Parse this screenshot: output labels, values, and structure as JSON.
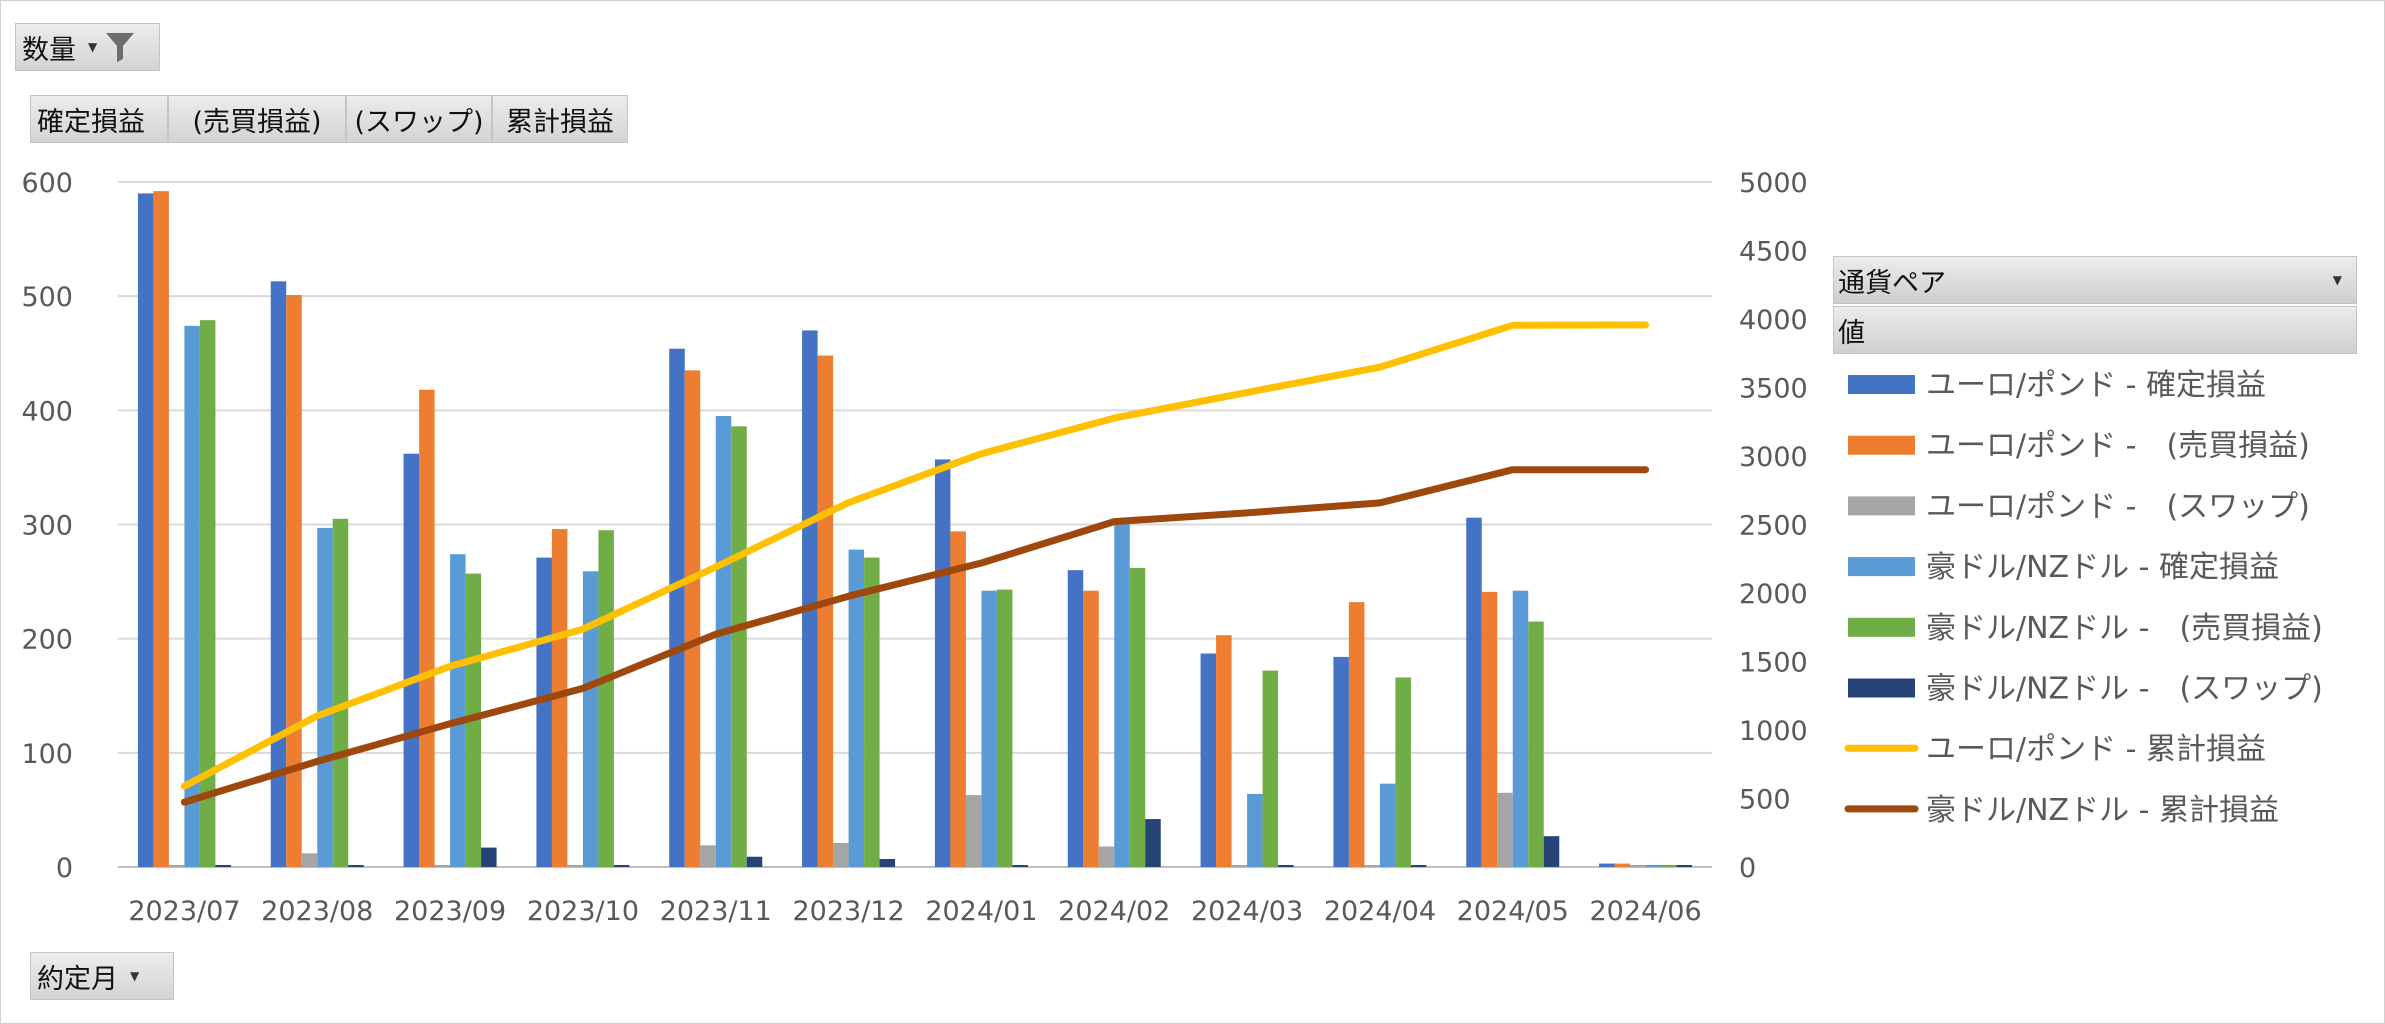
{
  "filter_field": {
    "label": "数量",
    "icon": "funnel-icon"
  },
  "value_fields": [
    "確定損益",
    "(売買損益)",
    "(スワップ)",
    "累計損益"
  ],
  "axis_field": {
    "label": "約定月"
  },
  "legend_header": {
    "series_field": "通貨ペア",
    "values_label": "値"
  },
  "chart_data": {
    "type": "bar",
    "categories": [
      "2023/07",
      "2023/08",
      "2023/09",
      "2023/10",
      "2023/11",
      "2023/12",
      "2024/01",
      "2024/02",
      "2024/03",
      "2024/04",
      "2024/05",
      "2024/06"
    ],
    "y_left": {
      "min": 0,
      "max": 600,
      "ticks": [
        0,
        100,
        200,
        300,
        400,
        500,
        600
      ]
    },
    "y_right": {
      "min": 0,
      "max": 5000,
      "ticks": [
        0,
        500,
        1000,
        1500,
        2000,
        2500,
        3000,
        3500,
        4000,
        4500,
        5000
      ]
    },
    "grid": true,
    "legend_position": "right",
    "series": [
      {
        "name": "ユーロ/ポンド - 確定損益",
        "type": "bar",
        "axis": "left",
        "color": "#4472C4",
        "values": [
          590,
          513,
          362,
          271,
          454,
          470,
          357,
          260,
          187,
          184,
          306,
          3
        ]
      },
      {
        "name": "ユーロ/ポンド -　(売買損益)",
        "type": "bar",
        "axis": "left",
        "color": "#ED7D31",
        "values": [
          592,
          501,
          418,
          296,
          435,
          448,
          294,
          242,
          203,
          232,
          241,
          3
        ]
      },
      {
        "name": "ユーロ/ポンド -　(スワップ)",
        "type": "bar",
        "axis": "left",
        "color": "#A5A5A5",
        "values": [
          0,
          12,
          0,
          0,
          19,
          21,
          63,
          18,
          0,
          0,
          65,
          0
        ]
      },
      {
        "name": "豪ドル/NZドル - 確定損益",
        "type": "bar",
        "axis": "left",
        "color": "#5B9BD5",
        "values": [
          474,
          297,
          274,
          259,
          395,
          278,
          242,
          302,
          64,
          73,
          242,
          0
        ]
      },
      {
        "name": "豪ドル/NZドル -　(売買損益)",
        "type": "bar",
        "axis": "left",
        "color": "#70AD47",
        "values": [
          479,
          305,
          257,
          295,
          386,
          271,
          243,
          262,
          172,
          166,
          215,
          0
        ]
      },
      {
        "name": "豪ドル/NZドル -　(スワップ)",
        "type": "bar",
        "axis": "left",
        "color": "#264478",
        "values": [
          0,
          0,
          17,
          0,
          9,
          7,
          0,
          42,
          0,
          0,
          27,
          0
        ]
      },
      {
        "name": "ユーロ/ポンド - 累計損益",
        "type": "line",
        "axis": "right",
        "color": "#FFC000",
        "values": [
          590,
          1103,
          1465,
          1736,
          2190,
          2660,
          3017,
          3277,
          3464,
          3648,
          3954,
          3957
        ]
      },
      {
        "name": "豪ドル/NZドル - 累計損益",
        "type": "line",
        "axis": "right",
        "color": "#9E480E",
        "values": [
          474,
          771,
          1045,
          1304,
          1699,
          1977,
          2219,
          2521,
          2585,
          2658,
          2900,
          2900
        ]
      }
    ]
  }
}
